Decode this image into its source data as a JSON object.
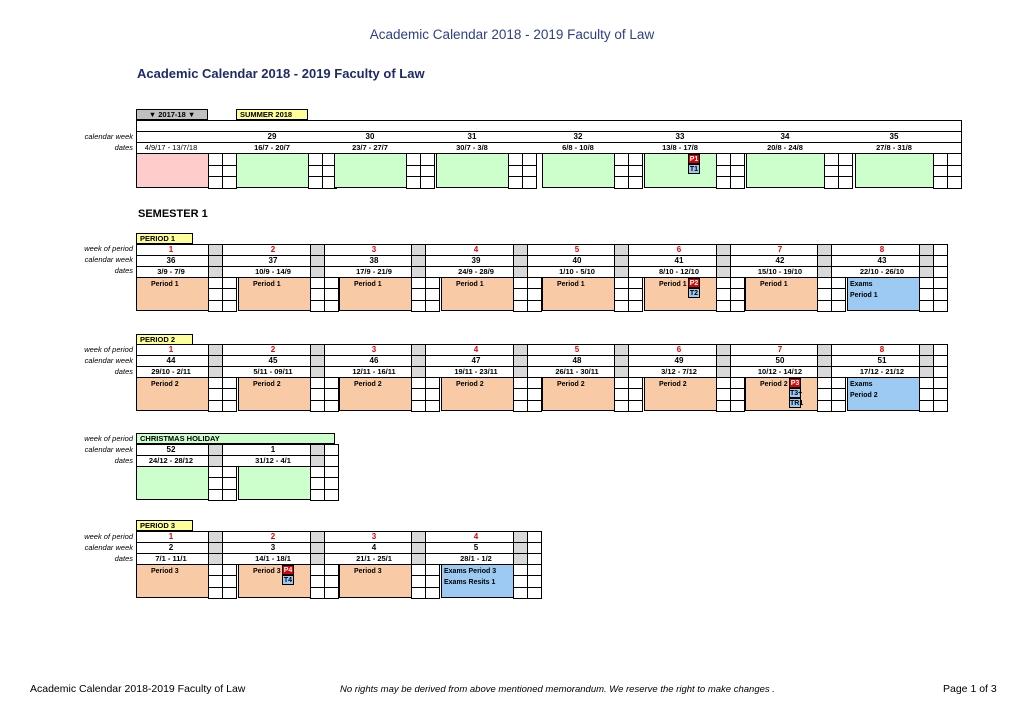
{
  "page_header": "Academic Calendar 2018 - 2019 Faculty of Law",
  "doc_title": "Academic Calendar 2018 - 2019 Faculty of Law",
  "row_labels": {
    "calendar_week": "calendar week",
    "dates": "dates",
    "week_of_period": "week of period"
  },
  "summer": {
    "dropdown": "▼ 2017-18 ▼",
    "title": "SUMMER 2018",
    "first_dates": "4/9/17 - 13/7/18",
    "weeks": [
      {
        "cw": "29",
        "dates": "16/7 - 20/7"
      },
      {
        "cw": "30",
        "dates": "23/7 - 27/7"
      },
      {
        "cw": "31",
        "dates": "30/7 - 3/8"
      },
      {
        "cw": "32",
        "dates": "6/8 - 10/8"
      },
      {
        "cw": "33",
        "dates": "13/8 - 17/8",
        "p": "P1",
        "t": "T1"
      },
      {
        "cw": "34",
        "dates": "20/8 - 24/8"
      },
      {
        "cw": "35",
        "dates": "27/8 - 31/8"
      }
    ]
  },
  "semester_title": "SEMESTER 1",
  "period1": {
    "title": "PERIOD 1",
    "weeks": [
      {
        "wp": "1",
        "cw": "36",
        "dates": "3/9 - 7/9",
        "label": "Period 1",
        "color": "org"
      },
      {
        "wp": "2",
        "cw": "37",
        "dates": "10/9 - 14/9",
        "label": "Period 1",
        "color": "org"
      },
      {
        "wp": "3",
        "cw": "38",
        "dates": "17/9 - 21/9",
        "label": "Period 1",
        "color": "org"
      },
      {
        "wp": "4",
        "cw": "39",
        "dates": "24/9 - 28/9",
        "label": "Period 1",
        "color": "org"
      },
      {
        "wp": "5",
        "cw": "40",
        "dates": "1/10 - 5/10",
        "label": "Period 1",
        "color": "org"
      },
      {
        "wp": "6",
        "cw": "41",
        "dates": "8/10 - 12/10",
        "label": "Period 1",
        "color": "org",
        "p": "P2",
        "t": "T2"
      },
      {
        "wp": "7",
        "cw": "42",
        "dates": "15/10 - 19/10",
        "label": "Period 1",
        "color": "org"
      },
      {
        "wp": "8",
        "cw": "43",
        "dates": "22/10 - 26/10",
        "label": "Exams",
        "label2": "Period 1",
        "color": "blu"
      }
    ]
  },
  "period2": {
    "title": "PERIOD 2",
    "weeks": [
      {
        "wp": "1",
        "cw": "44",
        "dates": "29/10 - 2/11",
        "label": "Period 2",
        "color": "org"
      },
      {
        "wp": "2",
        "cw": "45",
        "dates": "5/11 - 09/11",
        "label": "Period 2",
        "color": "org"
      },
      {
        "wp": "3",
        "cw": "46",
        "dates": "12/11 - 16/11",
        "label": "Period 2",
        "color": "org"
      },
      {
        "wp": "4",
        "cw": "47",
        "dates": "19/11 - 23/11",
        "label": "Period 2",
        "color": "org"
      },
      {
        "wp": "5",
        "cw": "48",
        "dates": "26/11 - 30/11",
        "label": "Period 2",
        "color": "org"
      },
      {
        "wp": "6",
        "cw": "49",
        "dates": "3/12 - 7/12",
        "label": "Period 2",
        "color": "org"
      },
      {
        "wp": "7",
        "cw": "50",
        "dates": "10/12 - 14/12",
        "label": "Period 2",
        "color": "org",
        "p": "P3",
        "t": "T3+",
        "t2": "TR1"
      },
      {
        "wp": "8",
        "cw": "51",
        "dates": "17/12 - 21/12",
        "label": "Exams",
        "label2": "Period 2",
        "color": "blu"
      }
    ]
  },
  "christmas": {
    "title": "CHRISTMAS HOLIDAY",
    "weeks": [
      {
        "wp": "",
        "cw": "52",
        "dates": "24/12 - 28/12",
        "label": "",
        "color": "lgrn"
      },
      {
        "wp": "1",
        "cw": "1",
        "dates": "31/12 - 4/1",
        "label": "",
        "color": "lgrn"
      }
    ]
  },
  "period3": {
    "title": "PERIOD 3",
    "weeks": [
      {
        "wp": "1",
        "cw": "2",
        "dates": "7/1 - 11/1",
        "label": "Period 3",
        "color": "org"
      },
      {
        "wp": "2",
        "cw": "3",
        "dates": "14/1 - 18/1",
        "label": "Period 3",
        "color": "org",
        "p": "P4",
        "t": "T4"
      },
      {
        "wp": "3",
        "cw": "4",
        "dates": "21/1 - 25/1",
        "label": "Period 3",
        "color": "org"
      },
      {
        "wp": "4",
        "cw": "5",
        "dates": "28/1 - 1/2",
        "label": "Exams Period 3",
        "label2": "Exams Resits 1",
        "color": "blu"
      }
    ]
  },
  "footer": {
    "left": "Academic Calendar 2018-2019 Faculty of Law",
    "center": "No rights may be derived from above mentioned memorandum. We reserve the right to make changes .",
    "right": "Page 1 of 3"
  }
}
